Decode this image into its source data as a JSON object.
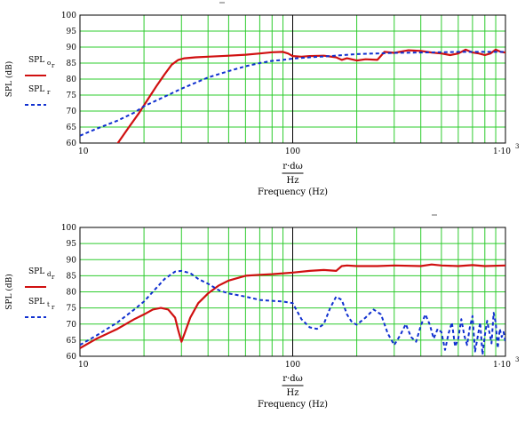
{
  "chart_data": [
    {
      "type": "line",
      "title": "",
      "xlabel": "Frequency (Hz)",
      "xexpr_top": "r·dω",
      "xexpr_bottom": "Hz",
      "ylabel": "SPL (dB)",
      "xscale": "log",
      "xlim": [
        10,
        1000
      ],
      "ylim": [
        60,
        100
      ],
      "grid": true,
      "x_ticks": [
        10,
        100,
        1000
      ],
      "x_tick_labels": [
        "10",
        "100",
        "1·10"
      ],
      "x_tick_exp": "3",
      "y_ticks": [
        60,
        65,
        70,
        75,
        80,
        85,
        90,
        95,
        100
      ],
      "y_tick_labels": [
        "60",
        "65",
        "70",
        "75",
        "80",
        "85",
        "90",
        "95",
        "100"
      ],
      "legend_placement": "left",
      "series": [
        {
          "name": "SPL",
          "name_sub": "o",
          "name_subsub": "r",
          "color": "#d01010",
          "style": "solid",
          "x": [
            15,
            17,
            19,
            21,
            23,
            25,
            27,
            29,
            31,
            35,
            40,
            50,
            60,
            70,
            80,
            90,
            95,
            100,
            110,
            120,
            140,
            160,
            170,
            180,
            200,
            220,
            250,
            270,
            300,
            350,
            400,
            450,
            500,
            550,
            600,
            650,
            700,
            750,
            800,
            850,
            900,
            950,
            1000
          ],
          "values": [
            59.8,
            65,
            69.5,
            74,
            78,
            81.5,
            84.5,
            86,
            86.5,
            86.8,
            87,
            87.3,
            87.6,
            88,
            88.4,
            88.5,
            88,
            87.2,
            87,
            87.2,
            87.3,
            86.8,
            86,
            86.5,
            85.8,
            86.2,
            86,
            88.5,
            88.2,
            89,
            88.8,
            88.3,
            88,
            87.5,
            88,
            89.2,
            88.3,
            88,
            87.5,
            88,
            89.2,
            88.5,
            88.3
          ]
        },
        {
          "name": "SPL",
          "name_sub": "r",
          "color": "#1030d0",
          "style": "dashed",
          "x": [
            10,
            12,
            15,
            18,
            20,
            25,
            30,
            40,
            50,
            60,
            70,
            80,
            90,
            100,
            120,
            150,
            200,
            300,
            400,
            500,
            600,
            700,
            800,
            900,
            1000
          ],
          "values": [
            62.3,
            64.5,
            67,
            69.5,
            71.5,
            74.5,
            77,
            80.5,
            82.5,
            84,
            85,
            85.7,
            86,
            86.4,
            86.8,
            87.2,
            87.8,
            88.2,
            88.3,
            88.4,
            88.5,
            88.5,
            88.5,
            88.5,
            88.5
          ]
        }
      ]
    },
    {
      "type": "line",
      "title": "",
      "xlabel": "Frequency (Hz)",
      "xexpr_top": "r·dω",
      "xexpr_bottom": "Hz",
      "ylabel": "SPL (dB)",
      "xscale": "log",
      "xlim": [
        10,
        1000
      ],
      "ylim": [
        60,
        100
      ],
      "grid": true,
      "x_ticks": [
        10,
        100,
        1000
      ],
      "x_tick_labels": [
        "10",
        "100",
        "1·10"
      ],
      "x_tick_exp": "3",
      "y_ticks": [
        60,
        65,
        70,
        75,
        80,
        85,
        90,
        95,
        100
      ],
      "y_tick_labels": [
        "60",
        "65",
        "70",
        "75",
        "80",
        "85",
        "90",
        "95",
        "100"
      ],
      "legend_placement": "left",
      "series": [
        {
          "name": "SPL",
          "name_sub": "d",
          "name_subsub": "r",
          "color": "#d01010",
          "style": "solid",
          "x": [
            10,
            12,
            15,
            18,
            20,
            22,
            24,
            26,
            28,
            29,
            30,
            31,
            33,
            36,
            40,
            45,
            50,
            60,
            70,
            80,
            100,
            120,
            140,
            160,
            170,
            180,
            200,
            250,
            300,
            400,
            450,
            500,
            600,
            700,
            800,
            1000
          ],
          "values": [
            62.5,
            65.5,
            68.5,
            71.5,
            73,
            74.5,
            75,
            74.5,
            72,
            68,
            64.5,
            67,
            72,
            76.5,
            79.5,
            82,
            83.5,
            85,
            85.3,
            85.5,
            86,
            86.5,
            86.8,
            86.5,
            88,
            88.2,
            88,
            88,
            88.2,
            88,
            88.5,
            88.2,
            88,
            88.3,
            88,
            88.2
          ]
        },
        {
          "name": "SPL",
          "name_sub": "t",
          "name_subsub": "r",
          "color": "#1030d0",
          "style": "dashed",
          "x": [
            10,
            12,
            15,
            18,
            20,
            22,
            25,
            28,
            30,
            33,
            36,
            40,
            45,
            50,
            60,
            70,
            80,
            90,
            100,
            110,
            120,
            130,
            140,
            150,
            160,
            170,
            180,
            190,
            200,
            220,
            240,
            260,
            280,
            300,
            320,
            340,
            360,
            380,
            400,
            420,
            440,
            460,
            480,
            500,
            520,
            540,
            560,
            580,
            600,
            620,
            640,
            660,
            680,
            700,
            720,
            740,
            760,
            780,
            800,
            820,
            840,
            860,
            880,
            900,
            920,
            940,
            960,
            980,
            1000
          ],
          "values": [
            63.5,
            66.5,
            70.5,
            74.5,
            77,
            80,
            84,
            86.3,
            86.5,
            85.8,
            84,
            82.5,
            80.5,
            79.5,
            78.5,
            77.5,
            77.2,
            77,
            76.5,
            71.5,
            69,
            68.5,
            70,
            75,
            78.5,
            77.5,
            73,
            70.5,
            69.8,
            72,
            74.5,
            73,
            67,
            63.5,
            66.5,
            70,
            66,
            64.5,
            69.5,
            73,
            70,
            65.5,
            68.5,
            67.5,
            62,
            67,
            70.5,
            63,
            65.5,
            71.5,
            66.5,
            63.5,
            69,
            72.5,
            61.5,
            66,
            70.5,
            60.5,
            66.5,
            71,
            67.5,
            64,
            73.5,
            70.5,
            62.5,
            68.5,
            66,
            67.5,
            64.5
          ]
        }
      ]
    }
  ]
}
